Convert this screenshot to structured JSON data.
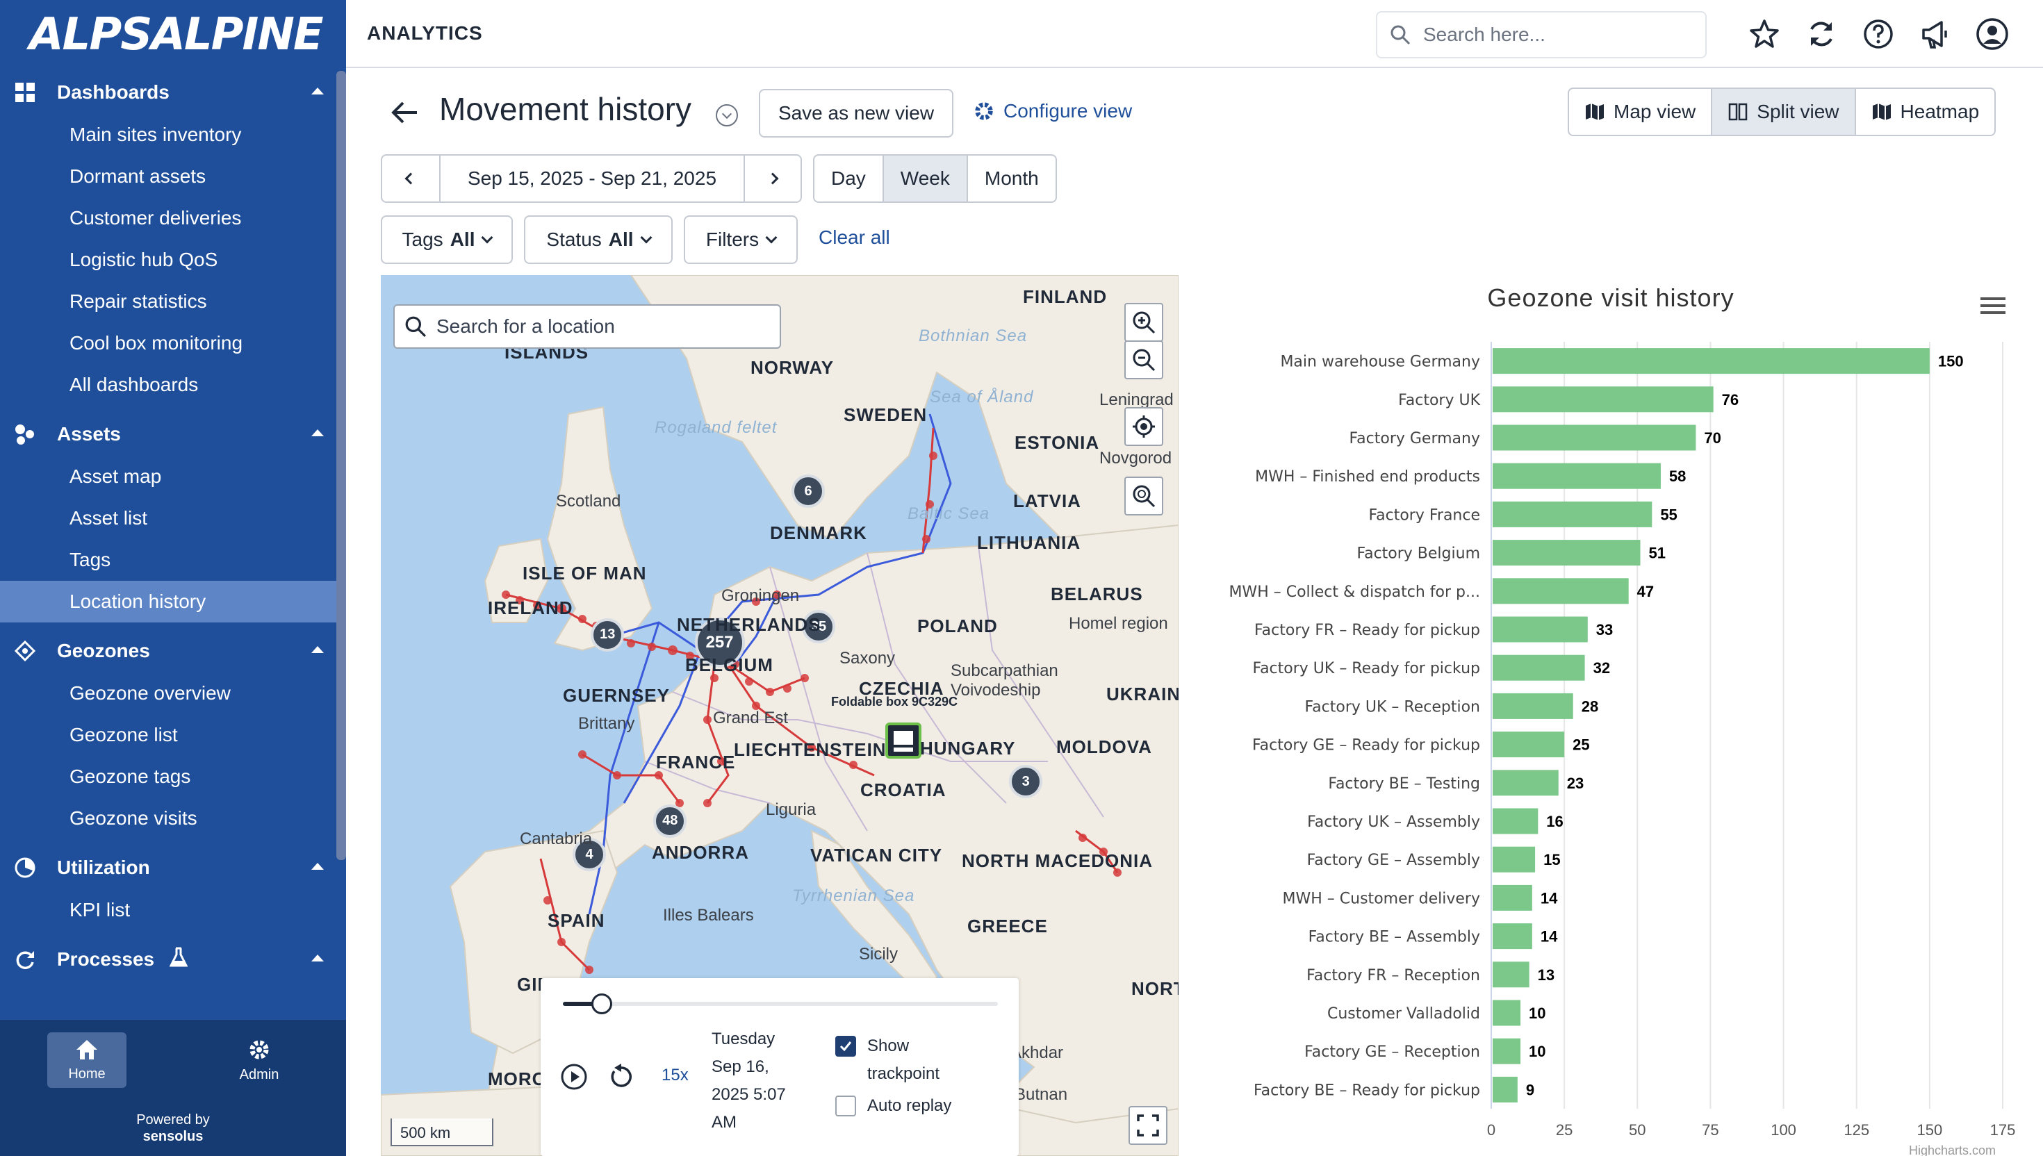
{
  "brand": {
    "logo_text": "ALPSALPINE"
  },
  "sidebar": {
    "sections": [
      {
        "label": "Dashboards",
        "items": [
          "Main sites inventory",
          "Dormant assets",
          "Customer deliveries",
          "Logistic hub QoS",
          "Repair statistics",
          "Cool box monitoring",
          "All dashboards"
        ]
      },
      {
        "label": "Assets",
        "items": [
          "Asset map",
          "Asset list",
          "Tags",
          "Location history"
        ]
      },
      {
        "label": "Geozones",
        "items": [
          "Geozone overview",
          "Geozone list",
          "Geozone tags",
          "Geozone visits"
        ]
      },
      {
        "label": "Utilization",
        "items": [
          "KPI list"
        ]
      },
      {
        "label": "Processes",
        "items": []
      }
    ],
    "active_item": "Location history",
    "bottom": {
      "home_label": "Home",
      "admin_label": "Admin",
      "powered_by": "Powered by",
      "powered_brand": "sensolus"
    }
  },
  "topbar": {
    "title": "ANALYTICS",
    "search_placeholder": "Search here...",
    "icons": [
      "star-icon",
      "refresh-icon",
      "help-icon",
      "megaphone-icon",
      "user-icon"
    ]
  },
  "page": {
    "title": "Movement history",
    "save_view_label": "Save as new view",
    "configure_view_label": "Configure view",
    "views": [
      "Map view",
      "Split view",
      "Heatmap"
    ],
    "active_view": "Split view",
    "date_range": "Sep 15, 2025 - Sep 21, 2025",
    "periods": [
      "Day",
      "Week",
      "Month"
    ],
    "active_period": "Week",
    "filters": {
      "tags_label": "Tags",
      "tags_value": "All",
      "status_label": "Status",
      "status_value": "All",
      "filters_label": "Filters",
      "clear_all": "Clear all"
    }
  },
  "map": {
    "search_placeholder": "Search for a location",
    "scale": "500 km",
    "asset_label": "Foldable box 9C329C",
    "countries": [
      "FINLAND",
      "NORWAY",
      "SWEDEN",
      "ESTONIA",
      "LATVIA",
      "LITHUANIA",
      "DENMARK",
      "BELARUS",
      "POLAND",
      "ISLE OF MAN",
      "IRELAND",
      "NETHERLANDS",
      "BELGIUM",
      "GUERNSEY",
      "CZECHIA",
      "UKRAIN",
      "LIECHTENSTEIN",
      "HUNGARY",
      "MOLDOVA",
      "FRANCE",
      "CROATIA",
      "ANDORRA",
      "VATICAN CITY",
      "NORTH MACEDONIA",
      "SPAIN",
      "GREECE",
      "MOROCCO",
      "GIBRALTAR",
      "ISLANDS",
      "NORTH CYPRUS"
    ],
    "places": [
      "Leningrad",
      "Novgorod",
      "Scotland",
      "Groningen",
      "Homel region",
      "Saxony",
      "Subcarpathian Voivodeship",
      "Brittany",
      "Grand Est",
      "Liguria",
      "Cantabria",
      "Illes Balears",
      "Sicily",
      "Bothnian Sea",
      "Sea of Åland",
      "Baltic Sea",
      "Rogaland feltet",
      "Tyrrhenian Sea",
      "Butnan",
      "Akhdar"
    ],
    "clusters": [
      "257",
      "13",
      "35",
      "6",
      "48",
      "4",
      "3"
    ],
    "player": {
      "speed": "15x",
      "timestamp_lines": [
        "Tuesday",
        "Sep 16,",
        "2025 5:07",
        "AM"
      ],
      "show_trackpoint_label": "Show trackpoint",
      "show_trackpoint_checked": true,
      "auto_replay_label": "Auto replay",
      "auto_replay_checked": false,
      "progress": 0.09
    }
  },
  "chart_data": {
    "type": "bar",
    "orientation": "horizontal",
    "title": "Geozone visit history",
    "categories": [
      "Main warehouse Germany",
      "Factory UK",
      "Factory Germany",
      "MWH – Finished end products",
      "Factory France",
      "Factory Belgium",
      "MWH – Collect & dispatch for p...",
      "Factory FR – Ready for pickup",
      "Factory UK – Ready for pickup",
      "Factory UK – Reception",
      "Factory GE – Ready for pickup",
      "Factory BE – Testing",
      "Factory UK – Assembly",
      "Factory GE – Assembly",
      "MWH – Customer delivery",
      "Factory BE – Assembly",
      "Factory FR – Reception",
      "Customer Valladolid",
      "Factory GE – Reception",
      "Factory BE – Ready for pickup"
    ],
    "values": [
      150,
      76,
      70,
      58,
      55,
      51,
      47,
      33,
      32,
      28,
      25,
      23,
      16,
      15,
      14,
      14,
      13,
      10,
      10,
      9
    ],
    "xlim": [
      0,
      175
    ],
    "xticks": [
      0,
      25,
      50,
      75,
      100,
      125,
      150,
      175
    ],
    "bar_color": "#7cc88a",
    "credit": "Highcharts.com",
    "data_labels": true
  }
}
